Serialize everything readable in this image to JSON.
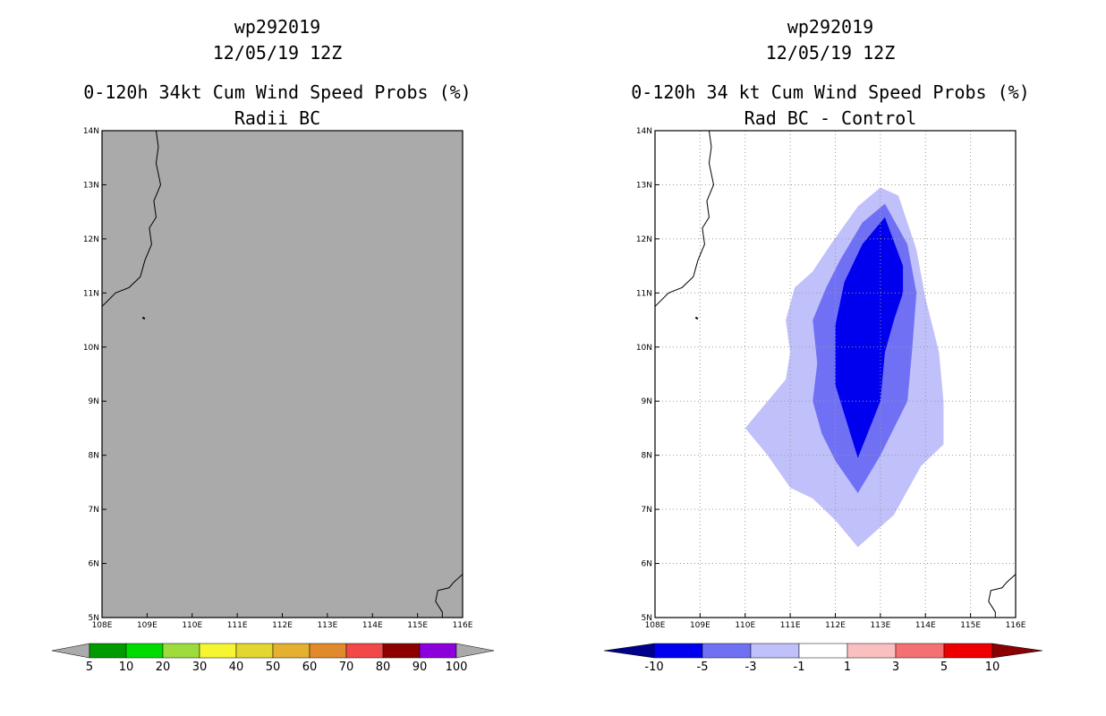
{
  "chart_data": [
    {
      "type": "heatmap",
      "panel": "left",
      "title_line1": "wp292019",
      "title_line2": "12/05/19 12Z",
      "title_line3": "0-120h 34kt Cum Wind Speed Probs (%)",
      "title_line4": "Radii BC",
      "xlim": [
        108,
        116
      ],
      "ylim": [
        5,
        14
      ],
      "x_ticks": [
        "108E",
        "109E",
        "110E",
        "111E",
        "112E",
        "113E",
        "114E",
        "115E",
        "116E"
      ],
      "y_ticks": [
        "5N",
        "6N",
        "7N",
        "8N",
        "9N",
        "10N",
        "11N",
        "12N",
        "13N",
        "14N"
      ],
      "field_state": "no data (all values below 5%)",
      "fill_color": "#aaaaaa",
      "grid": false,
      "colorbar": {
        "levels": [
          "5",
          "10",
          "20",
          "30",
          "40",
          "50",
          "60",
          "70",
          "80",
          "90",
          "100"
        ],
        "colors": [
          "#009b00",
          "#00dc00",
          "#9ddc3c",
          "#f5f532",
          "#e4d630",
          "#e3b02f",
          "#e08a2b",
          "#f24848",
          "#8c0000",
          "#8c00dc"
        ],
        "end_colors": [
          "#aaaaaa",
          "#aaaaaa"
        ]
      }
    },
    {
      "type": "heatmap",
      "panel": "right",
      "title_line1": "wp292019",
      "title_line2": "12/05/19 12Z",
      "title_line3": "0-120h 34 kt Cum Wind Speed Probs (%)",
      "title_line4": "Rad BC - Control",
      "xlim": [
        108,
        116
      ],
      "ylim": [
        5,
        14
      ],
      "x_ticks": [
        "108E",
        "109E",
        "110E",
        "111E",
        "112E",
        "113E",
        "114E",
        "115E",
        "116E"
      ],
      "y_ticks": [
        "5N",
        "6N",
        "7N",
        "8N",
        "9N",
        "10N",
        "11N",
        "12N",
        "13N",
        "14N"
      ],
      "grid": true,
      "contours": [
        {
          "range": "-3 to -1",
          "color": "#c0c0fa",
          "lonlat": [
            [
              112.5,
              6.3
            ],
            [
              113.3,
              6.9
            ],
            [
              113.9,
              7.8
            ],
            [
              114.4,
              8.2
            ],
            [
              114.4,
              9.0
            ],
            [
              114.3,
              9.9
            ],
            [
              114.0,
              10.9
            ],
            [
              113.8,
              11.8
            ],
            [
              113.4,
              12.8
            ],
            [
              113.0,
              12.95
            ],
            [
              112.5,
              12.6
            ],
            [
              111.9,
              11.9
            ],
            [
              111.5,
              11.4
            ],
            [
              111.1,
              11.1
            ],
            [
              110.9,
              10.5
            ],
            [
              111.0,
              9.9
            ],
            [
              110.9,
              9.4
            ],
            [
              110.5,
              9.0
            ],
            [
              110.0,
              8.5
            ],
            [
              110.5,
              8.0
            ],
            [
              111.0,
              7.4
            ],
            [
              111.5,
              7.2
            ],
            [
              112.0,
              6.8
            ]
          ]
        },
        {
          "range": "-5 to -3",
          "color": "#7070f5",
          "lonlat": [
            [
              112.5,
              7.3
            ],
            [
              113.0,
              8.0
            ],
            [
              113.3,
              8.5
            ],
            [
              113.6,
              9.0
            ],
            [
              113.7,
              9.9
            ],
            [
              113.8,
              11.0
            ],
            [
              113.6,
              11.9
            ],
            [
              113.1,
              12.65
            ],
            [
              112.6,
              12.3
            ],
            [
              112.1,
              11.6
            ],
            [
              111.8,
              11.1
            ],
            [
              111.5,
              10.5
            ],
            [
              111.6,
              9.7
            ],
            [
              111.5,
              9.0
            ],
            [
              111.7,
              8.4
            ],
            [
              112.0,
              7.9
            ]
          ]
        },
        {
          "range": "-10 to -5",
          "color": "#0000ee",
          "lonlat": [
            [
              112.5,
              7.95
            ],
            [
              113.0,
              9.0
            ],
            [
              113.1,
              9.9
            ],
            [
              113.3,
              10.5
            ],
            [
              113.5,
              11.0
            ],
            [
              113.5,
              11.5
            ],
            [
              113.1,
              12.4
            ],
            [
              112.6,
              11.9
            ],
            [
              112.2,
              11.2
            ],
            [
              112.0,
              10.4
            ],
            [
              112.0,
              9.3
            ]
          ]
        }
      ],
      "colorbar": {
        "levels": [
          "-10",
          "-5",
          "-3",
          "-1",
          "1",
          "3",
          "5",
          "10"
        ],
        "colors": [
          "#0000ee",
          "#7070f5",
          "#c0c0fa",
          "#ffffff",
          "#fac0c0",
          "#f57070",
          "#ee0000"
        ],
        "end_colors": [
          "#00008b",
          "#8b0000"
        ]
      }
    }
  ]
}
